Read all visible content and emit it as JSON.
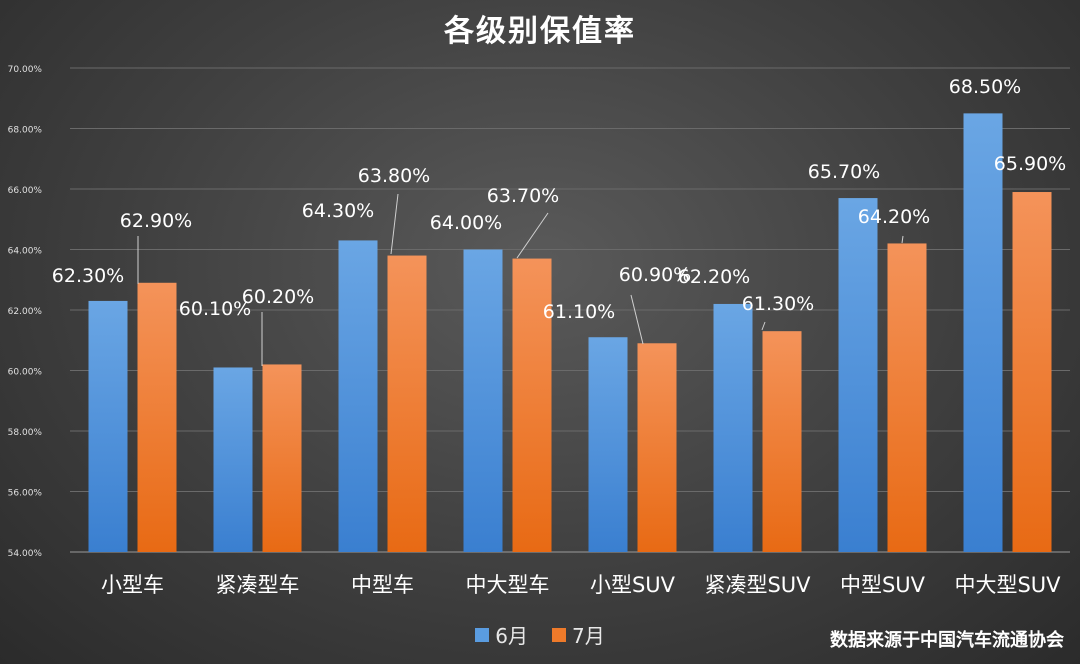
{
  "chart_data": {
    "type": "bar",
    "title": "各级别保值率",
    "categories": [
      "小型车",
      "紧凑型车",
      "中型车",
      "中大型车",
      "小型SUV",
      "紧凑型SUV",
      "中型SUV",
      "中大型SUV"
    ],
    "series": [
      {
        "name": "6月",
        "color": "#4a8fd8",
        "values": [
          62.3,
          60.1,
          64.3,
          64.0,
          61.1,
          62.2,
          65.7,
          68.5
        ],
        "labels": [
          "62.30%",
          "60.10%",
          "64.30%",
          "64.00%",
          "61.10%",
          "62.20%",
          "65.70%",
          "68.50%"
        ]
      },
      {
        "name": "7月",
        "color": "#ee7a2a",
        "values": [
          62.9,
          60.2,
          63.8,
          63.7,
          60.9,
          61.3,
          64.2,
          65.9
        ],
        "labels": [
          "62.90%",
          "60.20%",
          "63.80%",
          "63.70%",
          "60.90%",
          "61.30%",
          "64.20%",
          "65.90%"
        ]
      }
    ],
    "ylim": [
      54,
      70
    ],
    "yticks": [
      "54.00%",
      "56.00%",
      "58.00%",
      "60.00%",
      "62.00%",
      "64.00%",
      "66.00%",
      "68.00%",
      "70.00%"
    ],
    "legend_position": "bottom",
    "grid": true
  },
  "source_note": "数据来源于中国汽车流通协会"
}
